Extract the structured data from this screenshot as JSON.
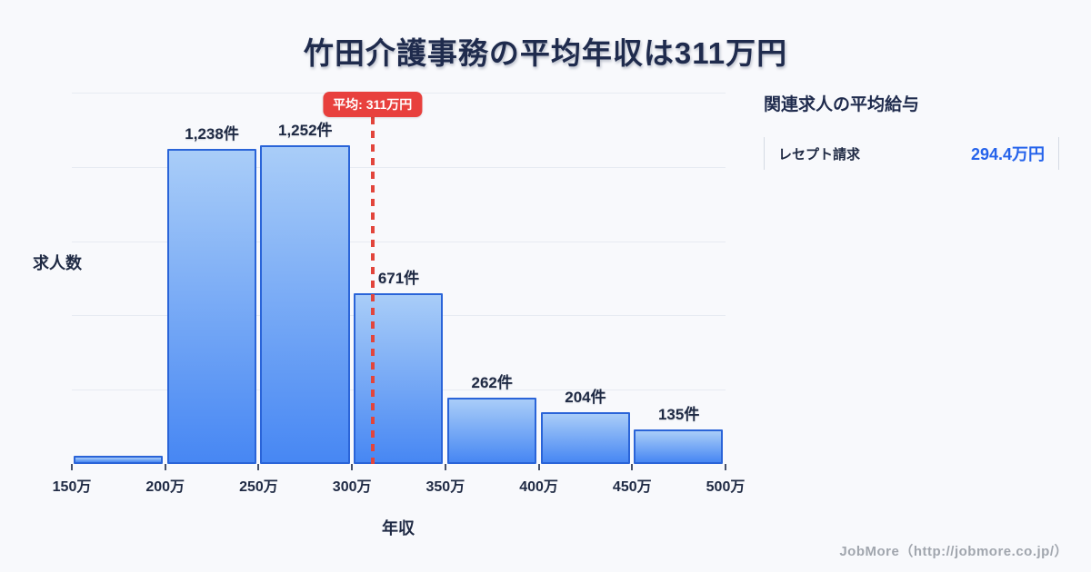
{
  "title": {
    "text": "竹田介護事務の平均年収は311万円"
  },
  "chart_data": {
    "type": "bar",
    "subtype": "histogram",
    "title": "竹田介護事務の平均年収は311万円",
    "xlabel": "年収",
    "ylabel": "求人数",
    "x_ticks": [
      "150万",
      "200万",
      "250万",
      "300万",
      "350万",
      "400万",
      "450万",
      "500万"
    ],
    "bin_edges_man_yen": [
      150,
      200,
      250,
      300,
      350,
      400,
      450,
      500
    ],
    "values": [
      32,
      1238,
      1252,
      671,
      262,
      204,
      135
    ],
    "bar_labels": [
      "",
      "1,238件",
      "1,252件",
      "671件",
      "262件",
      "204件",
      "135件"
    ],
    "ylim": [
      0,
      1460
    ],
    "gridline_count": 5,
    "grid": "horizontal",
    "legend_position": "none",
    "mean_line": {
      "value_man_yen": 311,
      "label": "平均: 311万円"
    },
    "colors": {
      "bar_gradient_top": "#a9cdf8",
      "bar_gradient_bottom": "#4787f3",
      "bar_border": "#2a64d8",
      "mean_red": "#e8403d",
      "grid": "#e7ebf2",
      "text": "#1f2a44"
    }
  },
  "side_panel": {
    "heading": "関連求人の平均給与",
    "rows": [
      {
        "label": "レセプト請求",
        "value": "294.4万円"
      }
    ],
    "value_color": "#2563eb"
  },
  "footer": {
    "credit": "JobMore（http://jobmore.co.jp/）"
  }
}
